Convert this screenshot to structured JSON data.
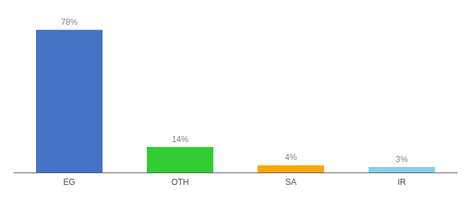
{
  "chart_data": {
    "type": "bar",
    "categories": [
      "EG",
      "OTH",
      "SA",
      "IR"
    ],
    "values": [
      78,
      14,
      4,
      3
    ],
    "value_labels": [
      "78%",
      "14%",
      "4%",
      "3%"
    ],
    "colors": [
      "#4472C4",
      "#33CC33",
      "#FFA500",
      "#87CEEB"
    ],
    "ylim": [
      0,
      83
    ],
    "grid": false,
    "data_labels": true,
    "tick_labels": "x"
  }
}
